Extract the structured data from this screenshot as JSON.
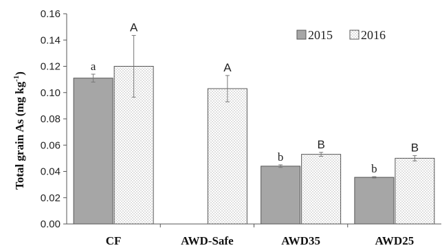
{
  "chart_data": {
    "type": "bar",
    "ylabel_main": "Total grain As (mg kg",
    "ylabel_sup": "-1",
    "ylabel_end": ")",
    "xlabel": "",
    "ylim": [
      0,
      0.16
    ],
    "yticks": [
      "0.00",
      "0.02",
      "0.04",
      "0.06",
      "0.08",
      "0.10",
      "0.12",
      "0.14",
      "0.16"
    ],
    "categories": [
      "CF",
      "AWD-Safe",
      "AWD35",
      "AWD25"
    ],
    "series": [
      {
        "name": "2015",
        "color": "#a6a6a6",
        "pattern": "solid",
        "values": [
          0.111,
          null,
          0.044,
          0.0355
        ],
        "errors": [
          0.003,
          null,
          0.001,
          0.0005
        ],
        "sig_labels": [
          "a",
          "",
          "b",
          "b"
        ]
      },
      {
        "name": "2016",
        "color": "#ffffff",
        "pattern": "dotted",
        "values": [
          0.12,
          0.103,
          0.053,
          0.05
        ],
        "errors": [
          0.0235,
          0.01,
          0.0015,
          0.002
        ],
        "sig_labels": [
          "A",
          "A",
          "B",
          "B"
        ]
      }
    ],
    "legend_position": "top-right",
    "grid": false
  }
}
